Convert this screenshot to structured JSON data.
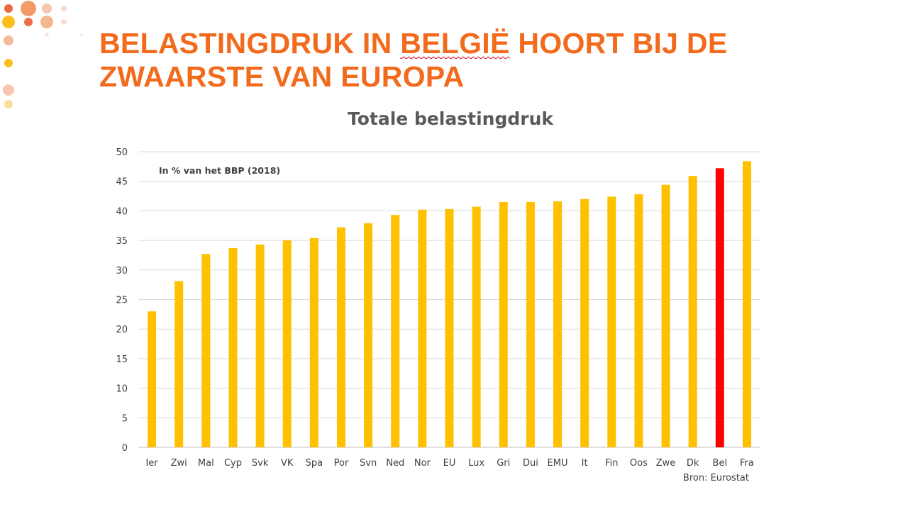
{
  "slide": {
    "title_part1": "BELASTINGDRUK IN ",
    "title_underlined": "BELGIË",
    "title_part2": " HOORT BIJ DE",
    "title_line2": "ZWAARSTE VAN EUROPA",
    "title_color": "#F26B1D",
    "source": "Bron: Eurostat"
  },
  "chart_data": {
    "type": "bar",
    "title": "Totale belastingdruk",
    "annotation": "In % van het BBP (2018)",
    "categories": [
      "Ier",
      "Zwi",
      "Mal",
      "Cyp",
      "Svk",
      "VK",
      "Spa",
      "Por",
      "Svn",
      "Ned",
      "Nor",
      "EU",
      "Lux",
      "Gri",
      "Dui",
      "EMU",
      "It",
      "Fin",
      "Oos",
      "Zwe",
      "Dk",
      "Bel",
      "Fra"
    ],
    "values": [
      23.0,
      28.1,
      32.7,
      33.7,
      34.3,
      35.0,
      35.4,
      37.2,
      37.9,
      39.3,
      40.2,
      40.3,
      40.7,
      41.5,
      41.5,
      41.6,
      42.0,
      42.4,
      42.8,
      44.4,
      45.9,
      47.2,
      48.4
    ],
    "ylim": [
      0,
      50
    ],
    "yticks": [
      0,
      5,
      10,
      15,
      20,
      25,
      30,
      35,
      40,
      45,
      50
    ],
    "grid": true,
    "bar_color": "#FFC000",
    "highlight_category": "Bel",
    "highlight_color": "#FF0000"
  }
}
